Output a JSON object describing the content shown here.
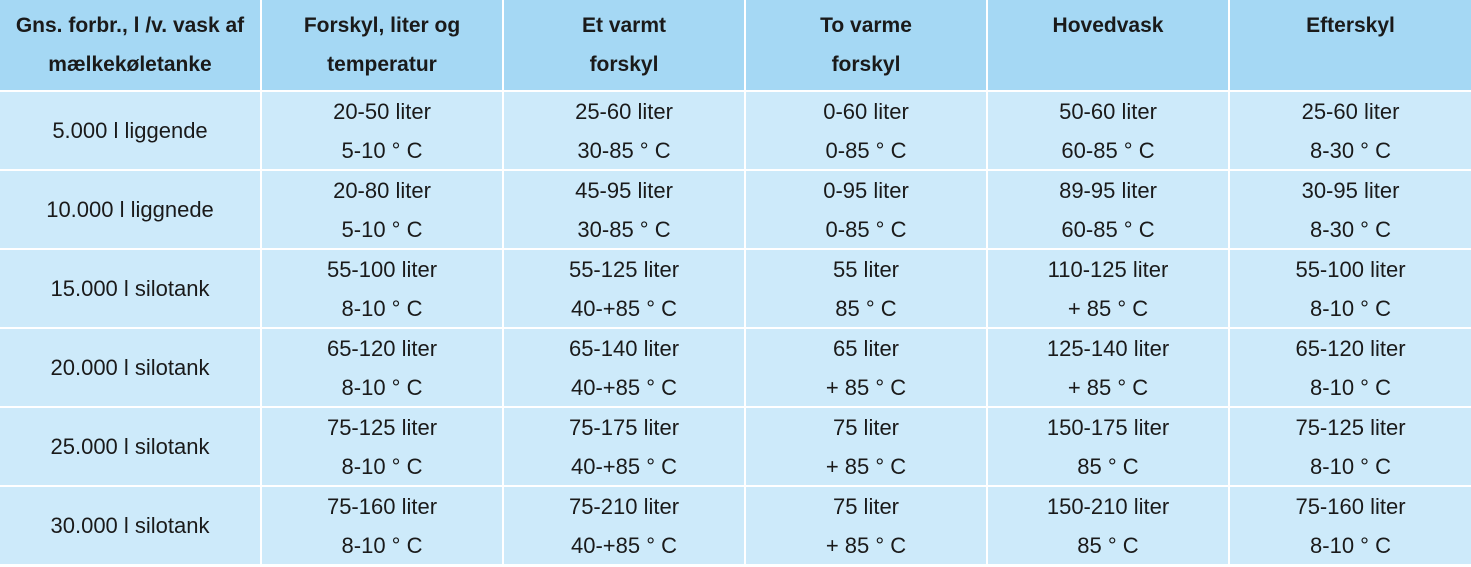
{
  "table": {
    "header": [
      [
        "Gns. forbr., l /v. vask af",
        "mælkekøletanke"
      ],
      [
        "Forskyl, liter og",
        "temperatur"
      ],
      [
        "Et varmt",
        "forskyl"
      ],
      [
        "To varme",
        "forskyl"
      ],
      [
        "Hovedvask"
      ],
      [
        "Efterskyl"
      ]
    ],
    "rows": [
      [
        [
          "5.000 l liggende"
        ],
        [
          "20-50 liter",
          "5-10 ° C"
        ],
        [
          "25-60 liter",
          "30-85 ° C"
        ],
        [
          "0-60 liter",
          "0-85 ° C"
        ],
        [
          "50-60 liter",
          "60-85 ° C"
        ],
        [
          "25-60 liter",
          "8-30 ° C"
        ]
      ],
      [
        [
          "10.000 l liggnede"
        ],
        [
          "20-80 liter",
          "5-10 ° C"
        ],
        [
          "45-95 liter",
          "30-85 ° C"
        ],
        [
          "0-95 liter",
          "0-85 ° C"
        ],
        [
          "89-95 liter",
          "60-85 ° C"
        ],
        [
          "30-95 liter",
          "8-30 ° C"
        ]
      ],
      [
        [
          "15.000 l silotank"
        ],
        [
          "55-100 liter",
          "8-10 ° C"
        ],
        [
          "55-125 liter",
          "40-+85 ° C"
        ],
        [
          "55 liter",
          "85 ° C"
        ],
        [
          "110-125 liter",
          "+ 85 ° C"
        ],
        [
          "55-100 liter",
          "8-10 ° C"
        ]
      ],
      [
        [
          "20.000 l silotank"
        ],
        [
          "65-120 liter",
          "8-10 ° C"
        ],
        [
          "65-140 liter",
          "40-+85 ° C"
        ],
        [
          "65 liter",
          "+ 85 ° C"
        ],
        [
          "125-140 liter",
          "+ 85 ° C"
        ],
        [
          "65-120 liter",
          "8-10 ° C"
        ]
      ],
      [
        [
          "25.000 l silotank"
        ],
        [
          "75-125 liter",
          "8-10 ° C"
        ],
        [
          "75-175 liter",
          "40-+85 ° C"
        ],
        [
          "75 liter",
          "+ 85 ° C"
        ],
        [
          "150-175 liter",
          "85 ° C"
        ],
        [
          "75-125 liter",
          "8-10 ° C"
        ]
      ],
      [
        [
          "30.000 l silotank"
        ],
        [
          "75-160 liter",
          "8-10 ° C"
        ],
        [
          "75-210 liter",
          "40-+85 ° C"
        ],
        [
          "75 liter",
          "+ 85 ° C"
        ],
        [
          "150-210 liter",
          "85 ° C"
        ],
        [
          "75-160 liter",
          "8-10 ° C"
        ]
      ]
    ]
  }
}
